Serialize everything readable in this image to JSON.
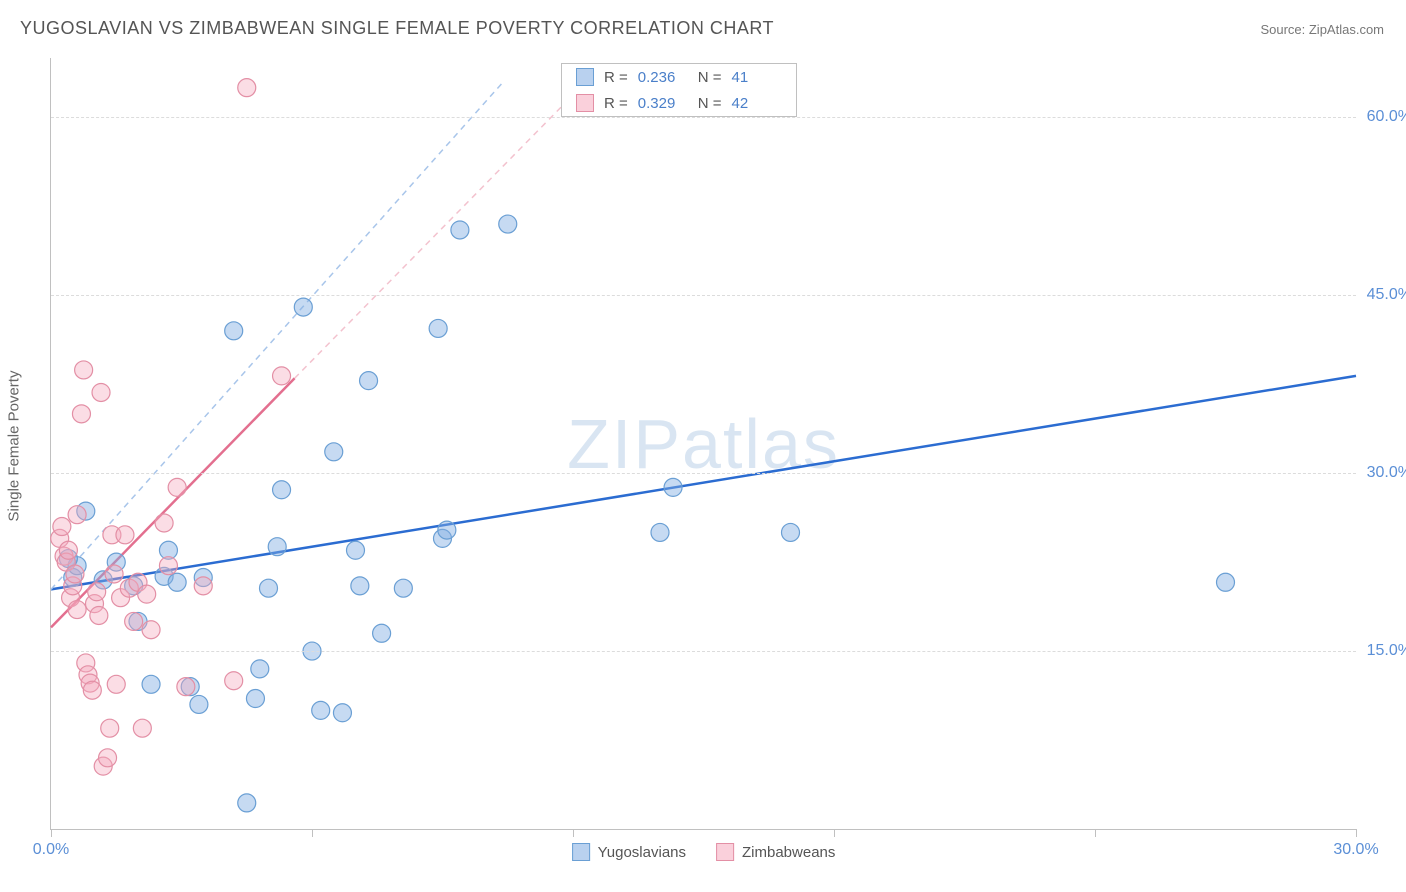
{
  "title": "YUGOSLAVIAN VS ZIMBABWEAN SINGLE FEMALE POVERTY CORRELATION CHART",
  "source": "Source: ZipAtlas.com",
  "ylabel": "Single Female Poverty",
  "watermark_zip": "ZIP",
  "watermark_atlas": "atlas",
  "chart": {
    "type": "scatter",
    "xlim": [
      0,
      30
    ],
    "ylim": [
      0,
      65
    ],
    "x_ticks": [
      0,
      6,
      12,
      18,
      24,
      30
    ],
    "x_tick_labels": [
      "0.0%",
      "",
      "",
      "",
      "",
      "30.0%"
    ],
    "y_gridlines": [
      15,
      30,
      45,
      60
    ],
    "y_gridline_labels": [
      "15.0%",
      "30.0%",
      "45.0%",
      "60.0%"
    ],
    "marker_radius": 9,
    "background_color": "#ffffff",
    "grid_color": "#dcdcdc",
    "axis_color": "#c0c0c0",
    "tick_label_color": "#5b8fd6",
    "series": [
      {
        "name": "Yugoslavians",
        "color_fill": "rgba(128,172,226,0.45)",
        "color_stroke": "#6a9fd4",
        "R": "0.236",
        "N": "41",
        "trend_solid": {
          "x1": 0,
          "y1": 20.2,
          "x2": 30,
          "y2": 38.2,
          "color": "#2b6cd1"
        },
        "trend_dash": {
          "x1": 0,
          "y1": 20.2,
          "x2": 10.4,
          "y2": 63,
          "color": "#a8c5ea"
        },
        "points": [
          [
            0.5,
            21.2
          ],
          [
            0.6,
            22.2
          ],
          [
            0.8,
            26.8
          ],
          [
            1.2,
            21.0
          ],
          [
            1.5,
            22.5
          ],
          [
            1.9,
            20.5
          ],
          [
            2.0,
            17.5
          ],
          [
            2.3,
            12.2
          ],
          [
            2.6,
            21.3
          ],
          [
            2.7,
            23.5
          ],
          [
            2.9,
            20.8
          ],
          [
            3.2,
            12.0
          ],
          [
            3.4,
            10.5
          ],
          [
            3.5,
            21.2
          ],
          [
            4.2,
            42.0
          ],
          [
            4.5,
            2.2
          ],
          [
            4.7,
            11.0
          ],
          [
            4.8,
            13.5
          ],
          [
            5.0,
            20.3
          ],
          [
            5.2,
            23.8
          ],
          [
            5.3,
            28.6
          ],
          [
            5.8,
            44.0
          ],
          [
            6.0,
            15.0
          ],
          [
            6.2,
            10.0
          ],
          [
            6.5,
            31.8
          ],
          [
            6.7,
            9.8
          ],
          [
            7.0,
            23.5
          ],
          [
            7.1,
            20.5
          ],
          [
            7.3,
            37.8
          ],
          [
            7.6,
            16.5
          ],
          [
            8.1,
            20.3
          ],
          [
            8.9,
            42.2
          ],
          [
            9.0,
            24.5
          ],
          [
            9.1,
            25.2
          ],
          [
            9.4,
            50.5
          ],
          [
            10.5,
            51.0
          ],
          [
            14.0,
            25.0
          ],
          [
            14.3,
            28.8
          ],
          [
            17.0,
            25.0
          ],
          [
            27.0,
            20.8
          ],
          [
            0.4,
            22.8
          ]
        ]
      },
      {
        "name": "Zimbabweans",
        "color_fill": "rgba(245,170,190,0.40)",
        "color_stroke": "#e38fa5",
        "R": "0.329",
        "N": "42",
        "trend_solid": {
          "x1": 0,
          "y1": 17.0,
          "x2": 5.6,
          "y2": 38.0,
          "color": "#e36f8f"
        },
        "trend_dash": {
          "x1": 5.6,
          "y1": 38.0,
          "x2": 12.3,
          "y2": 63.0,
          "color": "#f3c2ce"
        },
        "points": [
          [
            0.2,
            24.5
          ],
          [
            0.25,
            25.5
          ],
          [
            0.3,
            23.0
          ],
          [
            0.35,
            22.5
          ],
          [
            0.4,
            23.5
          ],
          [
            0.45,
            19.5
          ],
          [
            0.5,
            20.5
          ],
          [
            0.55,
            21.5
          ],
          [
            0.6,
            18.5
          ],
          [
            0.6,
            26.5
          ],
          [
            0.7,
            35.0
          ],
          [
            0.75,
            38.7
          ],
          [
            0.8,
            14.0
          ],
          [
            0.85,
            13.0
          ],
          [
            0.9,
            12.3
          ],
          [
            0.95,
            11.7
          ],
          [
            1.0,
            19.0
          ],
          [
            1.05,
            20.0
          ],
          [
            1.1,
            18.0
          ],
          [
            1.15,
            36.8
          ],
          [
            1.2,
            5.3
          ],
          [
            1.3,
            6.0
          ],
          [
            1.35,
            8.5
          ],
          [
            1.4,
            24.8
          ],
          [
            1.45,
            21.5
          ],
          [
            1.5,
            12.2
          ],
          [
            1.6,
            19.5
          ],
          [
            1.7,
            24.8
          ],
          [
            1.8,
            20.3
          ],
          [
            1.9,
            17.5
          ],
          [
            2.0,
            20.8
          ],
          [
            2.1,
            8.5
          ],
          [
            2.2,
            19.8
          ],
          [
            2.3,
            16.8
          ],
          [
            2.6,
            25.8
          ],
          [
            2.7,
            22.2
          ],
          [
            2.9,
            28.8
          ],
          [
            3.1,
            12.0
          ],
          [
            3.5,
            20.5
          ],
          [
            4.2,
            12.5
          ],
          [
            4.5,
            62.5
          ],
          [
            5.3,
            38.2
          ]
        ]
      }
    ]
  },
  "legend_bottom": [
    {
      "label": "Yugoslavians",
      "swatch": "blue"
    },
    {
      "label": "Zimbabweans",
      "swatch": "pink"
    }
  ],
  "stats_rows": [
    {
      "swatch": "blue",
      "R_label": "R =",
      "R": "0.236",
      "N_label": "N =",
      "N": "41"
    },
    {
      "swatch": "pink",
      "R_label": "R =",
      "R": "0.329",
      "N_label": "N =",
      "N": "42"
    }
  ]
}
